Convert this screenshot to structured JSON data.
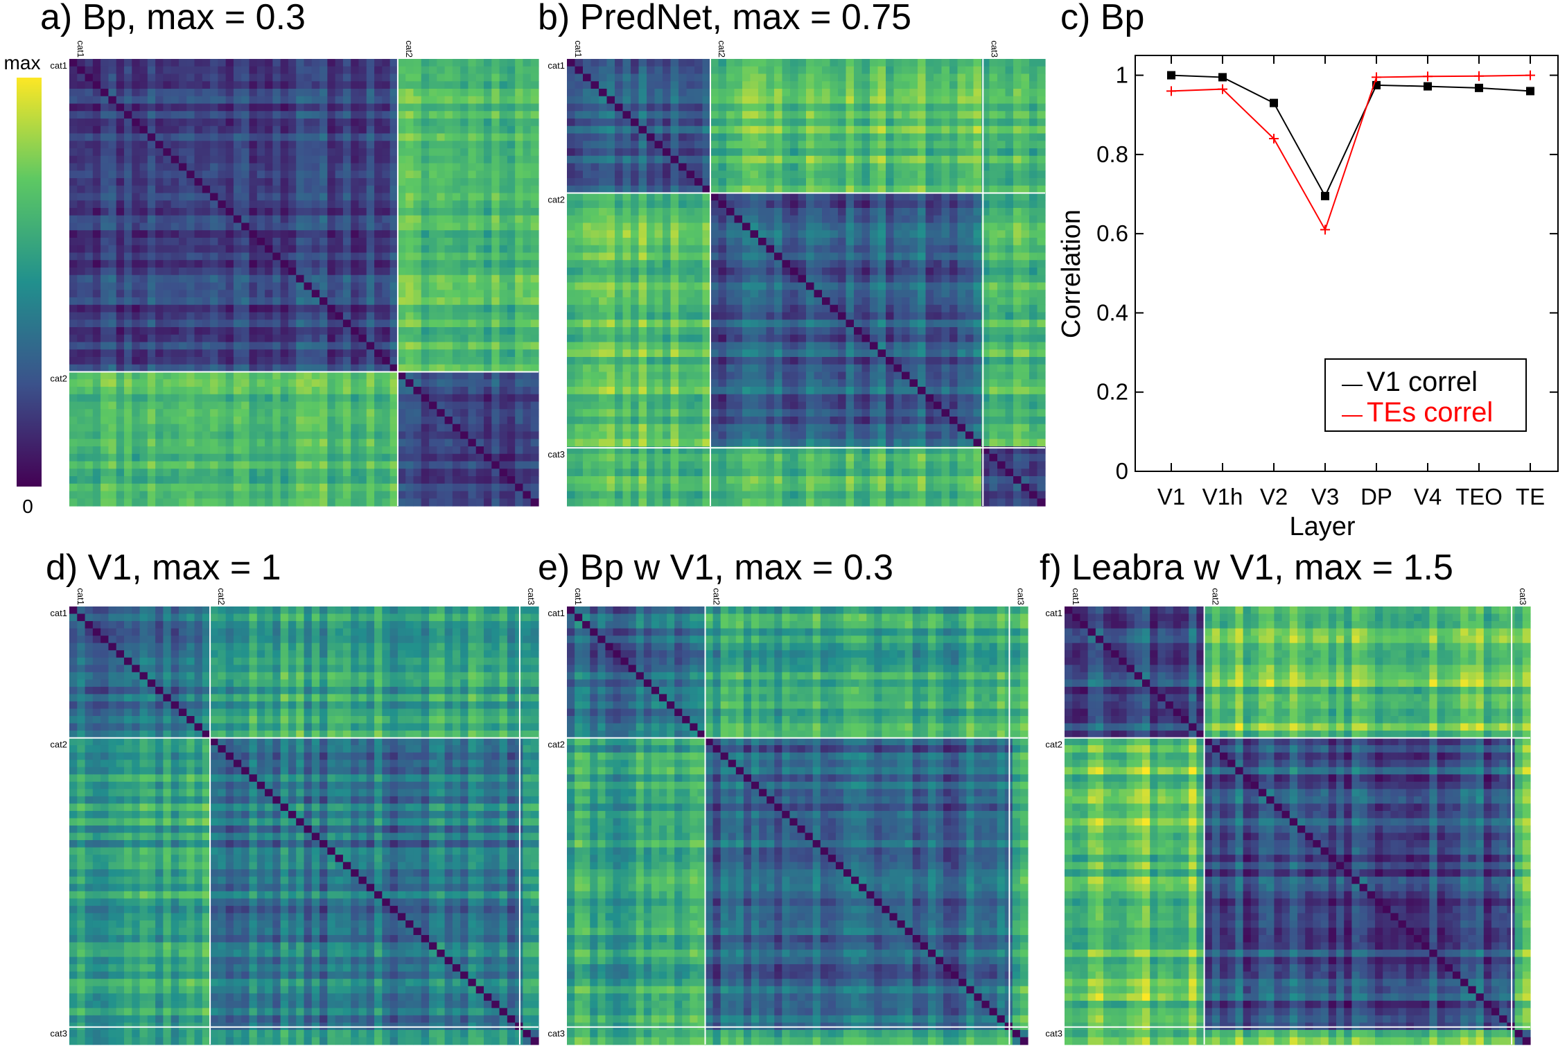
{
  "colorbar": {
    "max_label": "max",
    "min_label": "0",
    "colors": [
      "#440154",
      "#3b528b",
      "#21908d",
      "#5dc863",
      "#fde725"
    ]
  },
  "panels": [
    {
      "id": "a",
      "title": "a) Bp, max = 0.3",
      "categories": [
        {
          "label": "cat1",
          "fraction": 0.7
        },
        {
          "label": "cat2",
          "fraction": 0.3
        }
      ],
      "within_level": 0.22,
      "between_level": 0.7,
      "noise": 0.22
    },
    {
      "id": "b",
      "title": "b) PredNet, max = 0.75",
      "categories": [
        {
          "label": "cat1",
          "fraction": 0.3
        },
        {
          "label": "cat2",
          "fraction": 0.57
        },
        {
          "label": "cat3",
          "fraction": 0.13
        }
      ],
      "within_level": 0.3,
      "between_level": 0.72,
      "noise": 0.28
    },
    {
      "id": "d",
      "title": "d) V1, max = 1",
      "categories": [
        {
          "label": "cat1",
          "fraction": 0.3
        },
        {
          "label": "cat2",
          "fraction": 0.66
        },
        {
          "label": "cat3",
          "fraction": 0.04
        }
      ],
      "within_level": 0.4,
      "between_level": 0.6,
      "noise": 0.3
    },
    {
      "id": "e",
      "title": "e) Bp w V1, max = 0.3",
      "categories": [
        {
          "label": "cat1",
          "fraction": 0.3
        },
        {
          "label": "cat2",
          "fraction": 0.66
        },
        {
          "label": "cat3",
          "fraction": 0.04
        }
      ],
      "within_level": 0.32,
      "between_level": 0.58,
      "noise": 0.28
    },
    {
      "id": "f",
      "title": "f) Leabra w V1, max = 1.5",
      "categories": [
        {
          "label": "cat1",
          "fraction": 0.3
        },
        {
          "label": "cat2",
          "fraction": 0.66
        },
        {
          "label": "cat3",
          "fraction": 0.04
        }
      ],
      "within_level": 0.3,
      "between_level": 0.78,
      "noise": 0.35
    }
  ],
  "chart_data": {
    "type": "line",
    "title": "c) Bp",
    "xlabel": "Layer",
    "ylabel": "Correlation",
    "categories": [
      "V1",
      "V1h",
      "V2",
      "V3",
      "DP",
      "V4",
      "TEO",
      "TE"
    ],
    "ylim": [
      0,
      1.05
    ],
    "yticks": [
      "0",
      "0.2",
      "0.4",
      "0.6",
      "0.8",
      "1"
    ],
    "series": [
      {
        "name": "V1 correl",
        "color": "#000000",
        "marker": "square",
        "values": [
          1.0,
          0.995,
          0.93,
          0.695,
          0.975,
          0.972,
          0.968,
          0.96
        ]
      },
      {
        "name": "TEs correl",
        "color": "#ff0000",
        "marker": "plus",
        "values": [
          0.96,
          0.965,
          0.84,
          0.61,
          0.995,
          0.997,
          0.998,
          1.0
        ]
      }
    ],
    "legend_position": "bottom-right"
  }
}
